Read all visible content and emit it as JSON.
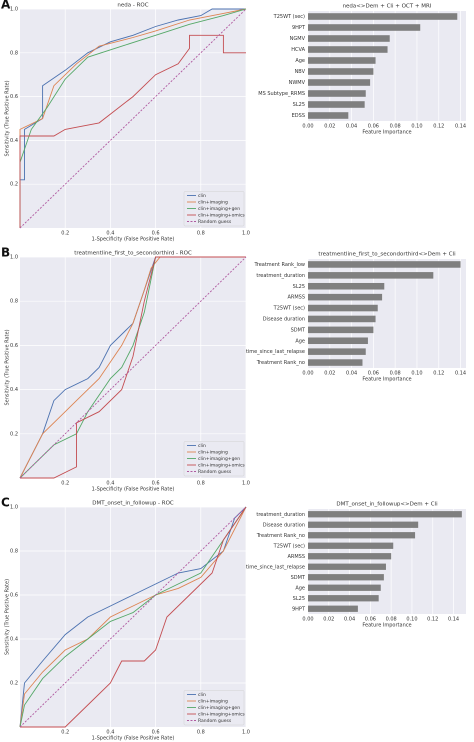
{
  "chart_data": [
    {
      "type": "line",
      "panel": "A",
      "title": "neda - ROC",
      "xlabel": "1-Specificity (False Positive Rate)",
      "ylabel": "Sensitivity (True Positive Rate)",
      "xlim": [
        0,
        1
      ],
      "ylim": [
        0,
        1
      ],
      "xticks": [
        0.2,
        0.4,
        0.6,
        0.8,
        {
          "value": 1,
          "label": "1.0"
        }
      ],
      "yticks": [
        0.2,
        0.4,
        0.6,
        0.8,
        {
          "value": 1,
          "label": "1.0"
        }
      ],
      "grid": true,
      "legend": "lower right",
      "series": [
        {
          "name": "clin",
          "color": "#4c72b0",
          "x": [
            0,
            0,
            0.02,
            0.02,
            0.1,
            0.1,
            0.2,
            0.3,
            0.4,
            0.5,
            0.6,
            0.7,
            0.8,
            0.85,
            1
          ],
          "values": [
            0,
            0.22,
            0.22,
            0.45,
            0.5,
            0.65,
            0.72,
            0.8,
            0.85,
            0.88,
            0.92,
            0.95,
            0.97,
            1,
            1
          ]
        },
        {
          "name": "clin+imaging",
          "color": "#dd8452",
          "x": [
            0,
            0,
            0.1,
            0.15,
            0.25,
            0.35,
            0.5,
            0.6,
            0.75,
            0.9,
            1
          ],
          "values": [
            0,
            0.45,
            0.5,
            0.65,
            0.75,
            0.83,
            0.87,
            0.9,
            0.95,
            0.98,
            1
          ]
        },
        {
          "name": "clin+imaging+gen",
          "color": "#55a868",
          "x": [
            0,
            0,
            0.05,
            0.12,
            0.2,
            0.3,
            0.45,
            0.6,
            0.75,
            0.9,
            1
          ],
          "values": [
            0,
            0.3,
            0.45,
            0.55,
            0.68,
            0.78,
            0.83,
            0.88,
            0.93,
            0.97,
            1
          ]
        },
        {
          "name": "clin+imaging+omics",
          "color": "#c44e52",
          "x": [
            0,
            0,
            0.15,
            0.2,
            0.35,
            0.4,
            0.5,
            0.6,
            0.7,
            0.75,
            0.75,
            0.9,
            0.9,
            1
          ],
          "values": [
            0,
            0.42,
            0.42,
            0.45,
            0.48,
            0.52,
            0.6,
            0.7,
            0.75,
            0.82,
            0.88,
            0.88,
            0.8,
            0.8
          ]
        },
        {
          "name": "Random guess",
          "color": "#b05aa0",
          "linestyle": "dashed",
          "x": [
            0,
            1
          ],
          "values": [
            0,
            1
          ]
        }
      ]
    },
    {
      "type": "barh",
      "title": "neda<>Dem + Cli + OCT + MRI",
      "xlabel": "Feature Importance",
      "color": "#7f7f7f",
      "categories": [
        "T25WT (sec)",
        "9HPT",
        "NGMV",
        "HCVA",
        "Age",
        "NBV",
        "NWMV",
        "MS Subtype_RRMS",
        "SL25",
        "EDSS"
      ],
      "values": [
        0.137,
        0.103,
        0.075,
        0.073,
        0.062,
        0.06,
        0.057,
        0.053,
        0.052,
        0.037
      ],
      "xlim": [
        0,
        0.145
      ],
      "xticks": [
        {
          "value": 0,
          "label": "0.00"
        },
        {
          "value": 0.02,
          "label": "0.02"
        },
        {
          "value": 0.04,
          "label": "0.04"
        },
        {
          "value": 0.06,
          "label": "0.06"
        },
        {
          "value": 0.08,
          "label": "0.08"
        },
        {
          "value": 0.1,
          "label": "0.10"
        },
        {
          "value": 0.12,
          "label": "0.12"
        },
        {
          "value": 0.14,
          "label": "0.14"
        }
      ],
      "grid": true
    },
    {
      "type": "line",
      "panel": "B",
      "title": "treatmentline_first_to_secondorthird - ROC",
      "xlabel": "1-Specificity (False Positive Rate)",
      "ylabel": "Sensitivity (True Positive Rate)",
      "xlim": [
        0,
        1
      ],
      "ylim": [
        0,
        1
      ],
      "xticks": [
        0.2,
        0.4,
        0.6,
        0.8,
        {
          "value": 1,
          "label": "1.0"
        }
      ],
      "yticks": [
        0.2,
        0.4,
        0.6,
        0.8,
        {
          "value": 1,
          "label": "1.0"
        }
      ],
      "grid": true,
      "legend": "lower right",
      "series": [
        {
          "name": "clin",
          "color": "#4c72b0",
          "x": [
            0,
            0.05,
            0.1,
            0.15,
            0.2,
            0.3,
            0.35,
            0.4,
            0.5,
            0.55,
            0.6,
            1
          ],
          "values": [
            0,
            0.1,
            0.2,
            0.35,
            0.4,
            0.45,
            0.5,
            0.6,
            0.7,
            0.85,
            1,
            1
          ]
        },
        {
          "name": "clin+imaging",
          "color": "#dd8452",
          "x": [
            0,
            0.1,
            0.2,
            0.25,
            0.35,
            0.45,
            0.5,
            0.55,
            0.58,
            0.62,
            1
          ],
          "values": [
            0,
            0.2,
            0.3,
            0.35,
            0.45,
            0.6,
            0.7,
            0.85,
            0.95,
            1,
            1
          ]
        },
        {
          "name": "clin+imaging+gen",
          "color": "#55a868",
          "x": [
            0,
            0.05,
            0.15,
            0.25,
            0.3,
            0.4,
            0.45,
            0.5,
            0.55,
            0.6,
            1
          ],
          "values": [
            0,
            0.05,
            0.15,
            0.2,
            0.3,
            0.45,
            0.5,
            0.6,
            0.75,
            1,
            1
          ]
        },
        {
          "name": "clin+imaging+omics",
          "color": "#c44e52",
          "x": [
            0,
            0.15,
            0.25,
            0.25,
            0.35,
            0.45,
            0.5,
            0.55,
            0.6,
            1
          ],
          "values": [
            0,
            0,
            0.05,
            0.25,
            0.3,
            0.4,
            0.55,
            0.8,
            1,
            1
          ]
        },
        {
          "name": "Random guess",
          "color": "#b05aa0",
          "linestyle": "dashed",
          "x": [
            0,
            1
          ],
          "values": [
            0,
            1
          ]
        }
      ]
    },
    {
      "type": "barh",
      "title": "treatmentline_first_to_secondorthird<>Dem + Cli",
      "xlabel": "Feature Importance",
      "color": "#7f7f7f",
      "categories": [
        "Treatment Rank_low",
        "treatment_duration",
        "SL25",
        "ARMSS",
        "T25WT (sec)",
        "Disease duration",
        "SDMT",
        "Age",
        "time_since_last_relapse",
        "Treatment Rank_no"
      ],
      "values": [
        0.14,
        0.115,
        0.07,
        0.068,
        0.064,
        0.062,
        0.06,
        0.055,
        0.053,
        0.05
      ],
      "xlim": [
        0,
        0.145
      ],
      "xticks": [
        {
          "value": 0,
          "label": "0.00"
        },
        {
          "value": 0.02,
          "label": "0.02"
        },
        {
          "value": 0.04,
          "label": "0.04"
        },
        {
          "value": 0.06,
          "label": "0.06"
        },
        {
          "value": 0.08,
          "label": "0.08"
        },
        {
          "value": 0.1,
          "label": "0.10"
        },
        {
          "value": 0.12,
          "label": "0.12"
        },
        {
          "value": 0.14,
          "label": "0.14"
        }
      ],
      "grid": true
    },
    {
      "type": "line",
      "panel": "C",
      "title": "DMT_onset_in_followup - ROC",
      "xlabel": "1-Specificity (False Positive Rate)",
      "ylabel": "Sensitivity (True Positive Rate)",
      "xlim": [
        0,
        1
      ],
      "ylim": [
        0,
        1
      ],
      "xticks": [
        0.2,
        0.4,
        0.6,
        0.8,
        {
          "value": 1,
          "label": "1.0"
        }
      ],
      "yticks": [
        0.2,
        0.4,
        0.6,
        0.8,
        {
          "value": 1,
          "label": "1.0"
        }
      ],
      "grid": true,
      "legend": "lower right",
      "series": [
        {
          "name": "clin",
          "color": "#4c72b0",
          "x": [
            0,
            0.02,
            0.1,
            0.2,
            0.3,
            0.4,
            0.5,
            0.6,
            0.7,
            0.8,
            0.9,
            0.95,
            1
          ],
          "values": [
            0,
            0.2,
            0.3,
            0.42,
            0.5,
            0.55,
            0.6,
            0.65,
            0.7,
            0.72,
            0.8,
            0.95,
            1
          ]
        },
        {
          "name": "clin+imaging",
          "color": "#dd8452",
          "x": [
            0,
            0.02,
            0.1,
            0.2,
            0.3,
            0.4,
            0.5,
            0.6,
            0.7,
            0.8,
            0.9,
            1
          ],
          "values": [
            0,
            0.15,
            0.25,
            0.35,
            0.4,
            0.5,
            0.55,
            0.6,
            0.63,
            0.68,
            0.8,
            1
          ]
        },
        {
          "name": "clin+imaging+gen",
          "color": "#55a868",
          "x": [
            0,
            0.02,
            0.1,
            0.2,
            0.3,
            0.4,
            0.5,
            0.6,
            0.7,
            0.8,
            0.9,
            1
          ],
          "values": [
            0,
            0.1,
            0.22,
            0.32,
            0.4,
            0.48,
            0.52,
            0.6,
            0.65,
            0.7,
            0.85,
            1
          ]
        },
        {
          "name": "clin+imaging+omics",
          "color": "#c44e52",
          "x": [
            0,
            0.2,
            0.3,
            0.4,
            0.45,
            0.55,
            0.6,
            0.65,
            0.75,
            0.85,
            0.9,
            1
          ],
          "values": [
            0,
            0,
            0.1,
            0.2,
            0.3,
            0.3,
            0.35,
            0.5,
            0.6,
            0.7,
            0.85,
            1
          ]
        },
        {
          "name": "Random guess",
          "color": "#b05aa0",
          "linestyle": "dashed",
          "x": [
            0,
            1
          ],
          "values": [
            0,
            1
          ]
        }
      ]
    },
    {
      "type": "barh",
      "title": "DMT_onset_in_followup<>Dem + Cli",
      "xlabel": "Feature Importance",
      "color": "#7f7f7f",
      "categories": [
        "treatment_duration",
        "Disease duration",
        "Treatment Rank_no",
        "T25WT (sec)",
        "ARMSS",
        "time_since_last_relapse",
        "SDMT",
        "Age",
        "SL25",
        "9HPT"
      ],
      "values": [
        0.148,
        0.106,
        0.103,
        0.082,
        0.08,
        0.075,
        0.073,
        0.07,
        0.068,
        0.048
      ],
      "xlim": [
        0,
        0.152
      ],
      "xticks": [
        {
          "value": 0,
          "label": "0.00"
        },
        {
          "value": 0.02,
          "label": "0.02"
        },
        {
          "value": 0.04,
          "label": "0.04"
        },
        {
          "value": 0.06,
          "label": "0.06"
        },
        {
          "value": 0.08,
          "label": "0.08"
        },
        {
          "value": 0.1,
          "label": "0.10"
        },
        {
          "value": 0.12,
          "label": "0.12"
        },
        {
          "value": 0.14,
          "label": "0.14"
        }
      ],
      "grid": true
    }
  ]
}
